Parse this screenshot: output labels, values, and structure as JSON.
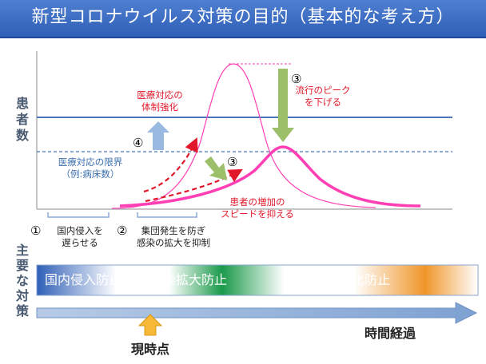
{
  "title": "新型コロナウイルス対策の目的（基本的な考え方）",
  "y_axis_label": [
    "患",
    "者",
    "数"
  ],
  "measures_label": [
    "主",
    "要",
    "な",
    "対",
    "策"
  ],
  "annotations": {
    "medical_strengthen": [
      "医療対応の",
      "体制強化"
    ],
    "medical_limit": [
      "医療対応の限界",
      "（例:病床数）"
    ],
    "lower_peak": [
      "流行のピーク",
      "を下げる"
    ],
    "slow_increase": [
      "患者の増加の",
      "スピードを抑える"
    ],
    "step1": [
      "国内侵入を",
      "遅らせる"
    ],
    "step2": [
      "集団発生を防ぎ",
      "感染の拡大を抑制"
    ]
  },
  "markers": {
    "m1": "①",
    "m2": "②",
    "m3a": "③",
    "m3b": "③",
    "m4": "④"
  },
  "measures": {
    "phase1": "国内侵入防止",
    "phase2": "感染拡大防止",
    "phase3": "重症化防止"
  },
  "timeline": {
    "time_label": "時間経過",
    "current_label": "現時点"
  },
  "colors": {
    "title_bg": "#3a6cc4",
    "curve": "#ff3fb4",
    "limit_line": "#4a76b8",
    "red_text": "#e0182a",
    "green_arrow": "#9cbf6a"
  }
}
